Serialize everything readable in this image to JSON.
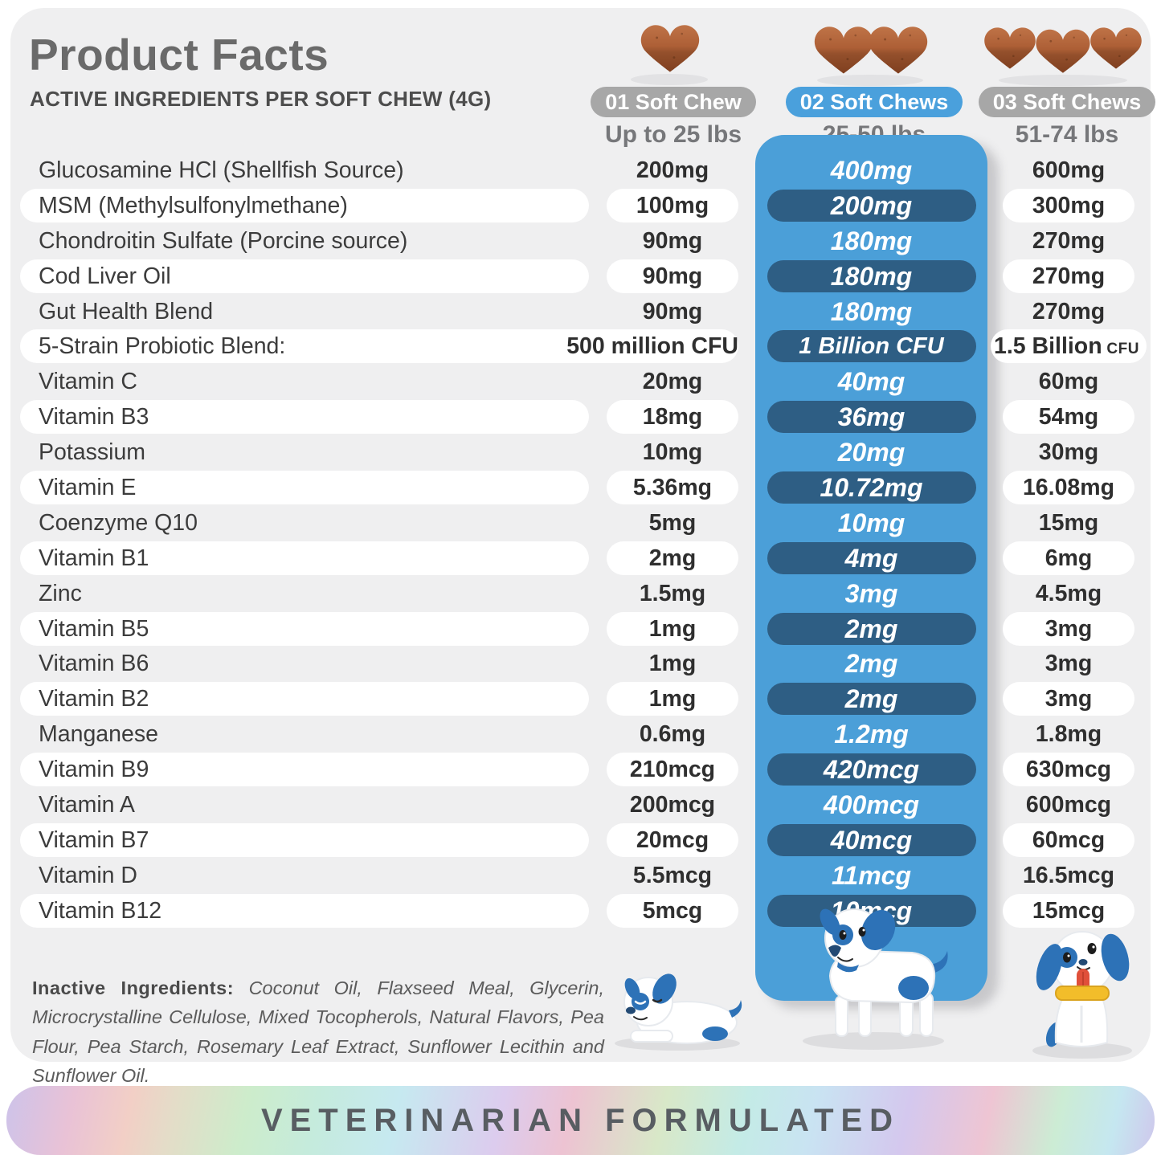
{
  "header": {
    "title": "Product Facts",
    "subtitle": "ACTIVE INGREDIENTS PER SOFT CHEW (4G)"
  },
  "columns": [
    {
      "chew_count": 1,
      "pill": "01 Soft Chew",
      "weight": "Up to 25 lbs",
      "pill_color": "#a7a7a7"
    },
    {
      "chew_count": 2,
      "pill": "02 Soft Chews",
      "weight": "25-50 lbs",
      "pill_color": "#4aa0dc"
    },
    {
      "chew_count": 3,
      "pill": "03 Soft Chews",
      "weight": "51-74 lbs",
      "pill_color": "#a7a7a7"
    }
  ],
  "rows": [
    {
      "name": "Glucosamine HCl (Shellfish Source)",
      "v1": "200mg",
      "v2": "400mg",
      "v3": "600mg"
    },
    {
      "name": "MSM (Methylsulfonylmethane)",
      "v1": "100mg",
      "v2": "200mg",
      "v3": "300mg"
    },
    {
      "name": "Chondroitin Sulfate (Porcine source)",
      "v1": "90mg",
      "v2": "180mg",
      "v3": "270mg"
    },
    {
      "name": "Cod Liver Oil",
      "v1": "90mg",
      "v2": "180mg",
      "v3": "270mg"
    },
    {
      "name": "Gut Health Blend",
      "v1": "90mg",
      "v2": "180mg",
      "v3": "270mg"
    },
    {
      "name": "5-Strain Probiotic Blend:",
      "v1": "500 million CFU",
      "v2": "1 Billion CFU",
      "v3": "1.5 Billion",
      "v3_small": "CFU",
      "wide": true
    },
    {
      "name": "Vitamin C",
      "v1": "20mg",
      "v2": "40mg",
      "v3": "60mg"
    },
    {
      "name": "Vitamin B3",
      "v1": "18mg",
      "v2": "36mg",
      "v3": "54mg"
    },
    {
      "name": "Potassium",
      "v1": "10mg",
      "v2": "20mg",
      "v3": "30mg"
    },
    {
      "name": "Vitamin E",
      "v1": "5.36mg",
      "v2": "10.72mg",
      "v3": "16.08mg"
    },
    {
      "name": "Coenzyme Q10",
      "v1": "5mg",
      "v2": "10mg",
      "v3": "15mg"
    },
    {
      "name": "Vitamin B1",
      "v1": "2mg",
      "v2": "4mg",
      "v3": "6mg"
    },
    {
      "name": "Zinc",
      "v1": "1.5mg",
      "v2": "3mg",
      "v3": "4.5mg"
    },
    {
      "name": "Vitamin B5",
      "v1": "1mg",
      "v2": "2mg",
      "v3": "3mg"
    },
    {
      "name": "Vitamin B6",
      "v1": "1mg",
      "v2": "2mg",
      "v3": "3mg"
    },
    {
      "name": "Vitamin B2",
      "v1": "1mg",
      "v2": "2mg",
      "v3": "3mg"
    },
    {
      "name": "Manganese",
      "v1": "0.6mg",
      "v2": "1.2mg",
      "v3": "1.8mg"
    },
    {
      "name": "Vitamin B9",
      "v1": "210mcg",
      "v2": "420mcg",
      "v3": "630mcg"
    },
    {
      "name": "Vitamin A",
      "v1": "200mcg",
      "v2": "400mcg",
      "v3": "600mcg"
    },
    {
      "name": "Vitamin B7",
      "v1": "20mcg",
      "v2": "40mcg",
      "v3": "60mcg"
    },
    {
      "name": "Vitamin D",
      "v1": "5.5mcg",
      "v2": "11mcg",
      "v3": "16.5mcg"
    },
    {
      "name": "Vitamin B12",
      "v1": "5mcg",
      "v2": "10mcg",
      "v3": "15mcg"
    }
  ],
  "inactive_ingredients": {
    "label": "Inactive Ingredients:",
    "text": "Coconut Oil, Flaxseed Meal, Glycerin, Microcrystalline Cellulose, Mixed Tocopherols, Natural Flavors, Pea Flour, Pea Starch, Rosemary Leaf Extract, Sunflower Lecithin and Sunflower Oil."
  },
  "footer": {
    "banner": "VETERINARIAN FORMULATED"
  },
  "colors": {
    "card_bg": "#efeff0",
    "panel_blue": "#4b9fd8",
    "pill_navy": "#2e5e84",
    "header_blue": "#4aa0dc",
    "header_gray": "#a7a7a7",
    "chew_brown": "#a85c35",
    "dog_blue": "#2d72b7"
  }
}
